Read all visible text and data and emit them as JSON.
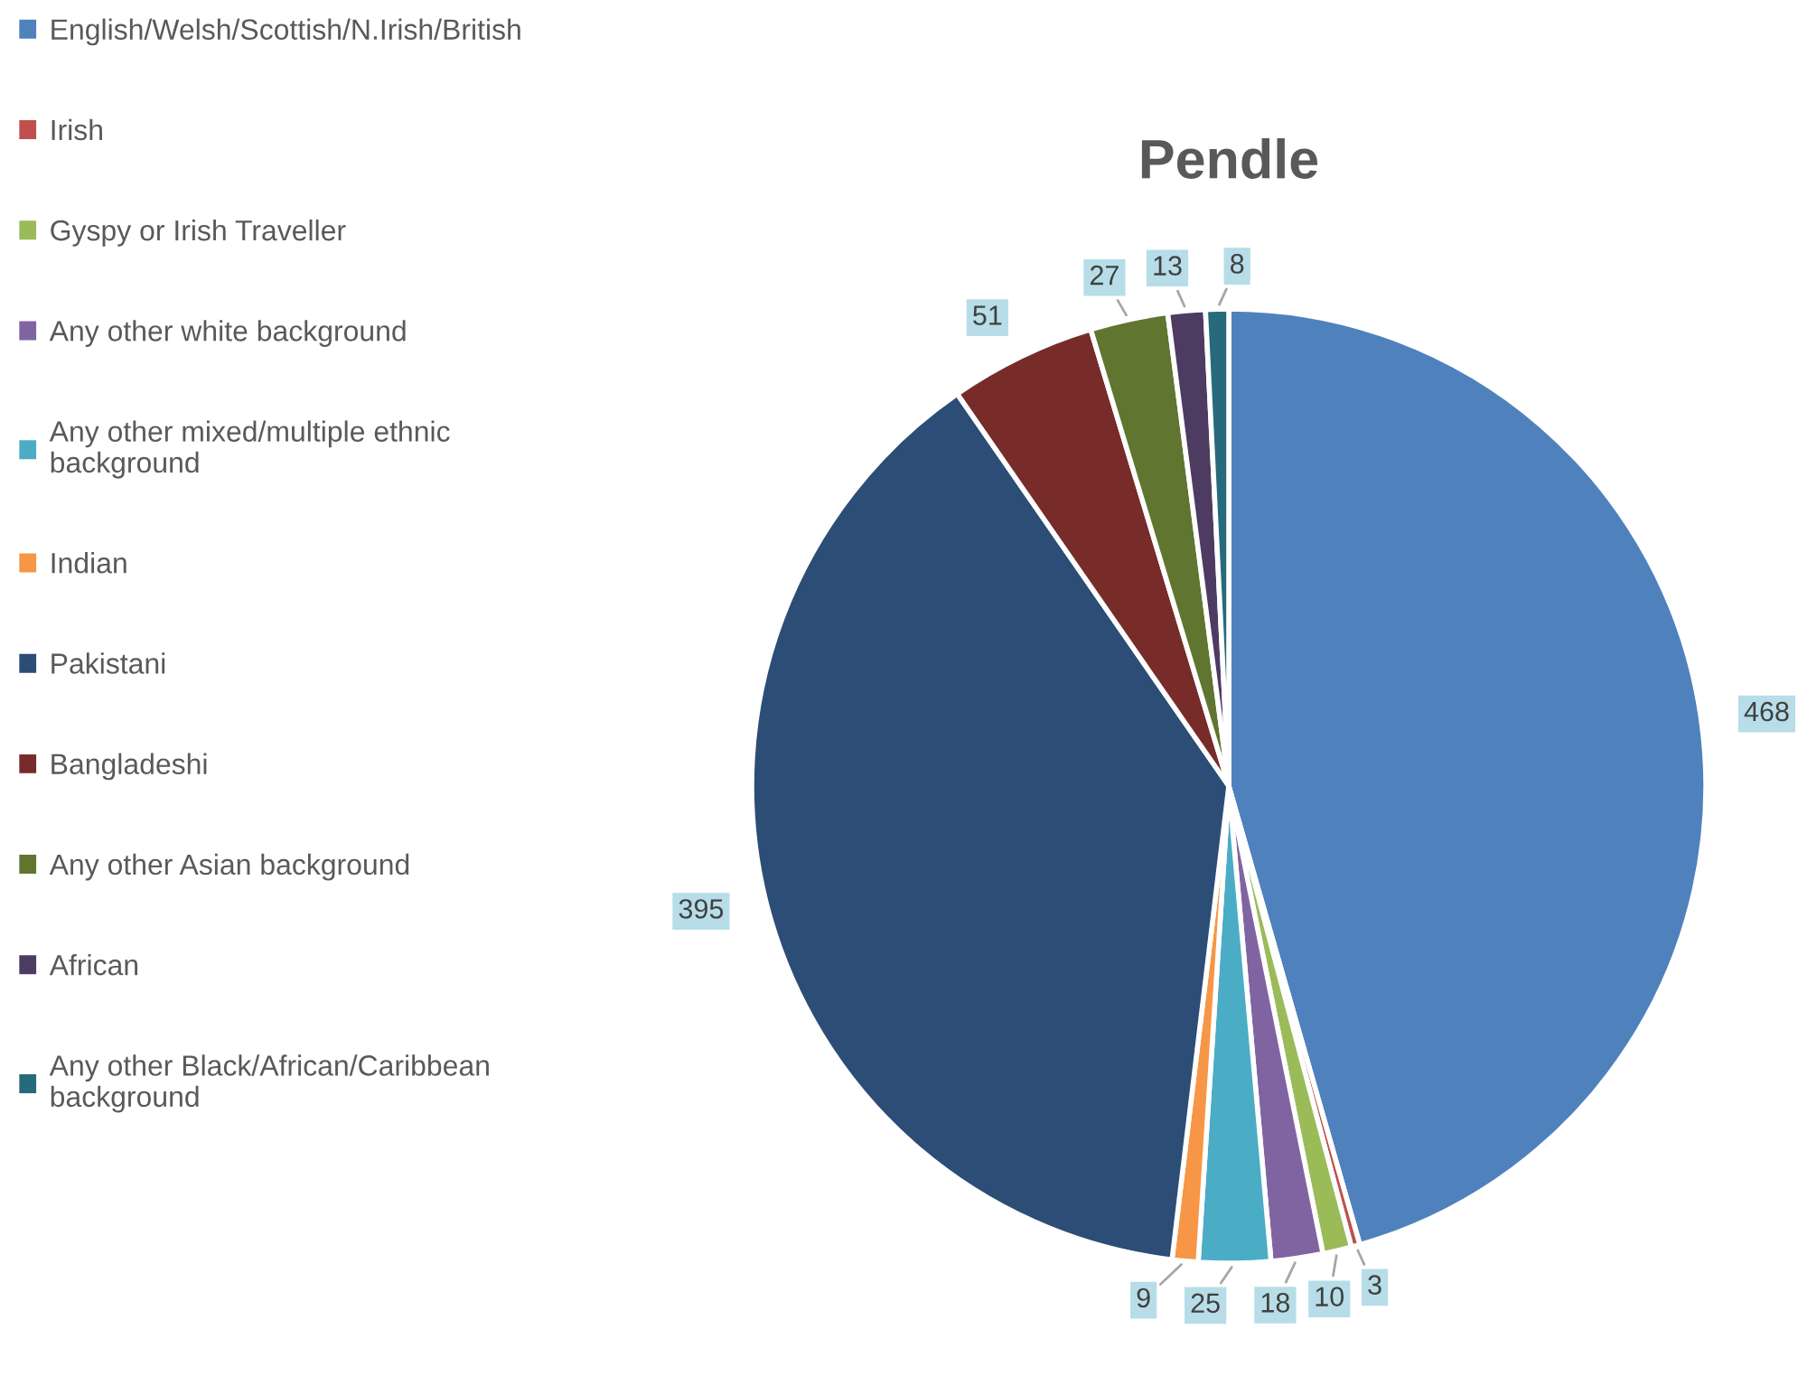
{
  "chart_data": {
    "type": "pie",
    "title": "Pendle",
    "categories": [
      "English/Welsh/Scottish/N.Irish/British",
      "Irish",
      "Gyspy or Irish Traveller",
      "Any other white background",
      "Any other mixed/multiple ethnic background",
      "Indian",
      "Pakistani",
      "Bangladeshi",
      "Any other Asian background",
      "African",
      "Any other Black/African/Caribbean background"
    ],
    "values": [
      468,
      3,
      10,
      18,
      25,
      9,
      395,
      51,
      27,
      13,
      8
    ],
    "colors": [
      "#4f81bd",
      "#c0504d",
      "#9bbb59",
      "#8064a2",
      "#4bacc6",
      "#f79646",
      "#2c4d75",
      "#772c2a",
      "#5f7530",
      "#4d3b62",
      "#276a7c"
    ],
    "data_labels": true,
    "legend": "left"
  }
}
